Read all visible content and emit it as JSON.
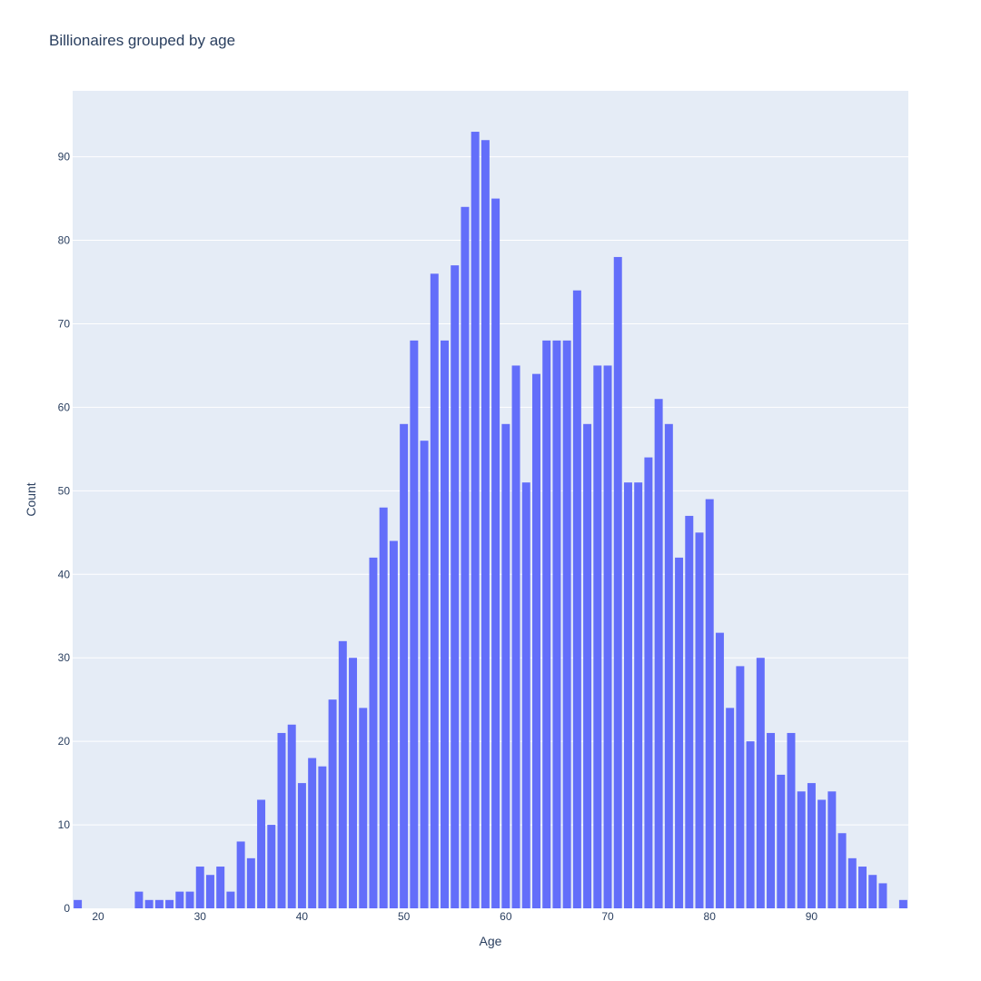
{
  "chart_data": {
    "type": "bar",
    "title": "Billionaires grouped by age",
    "xlabel": "Age",
    "ylabel": "Count",
    "xlim": [
      17.5,
      99.5
    ],
    "ylim": [
      0,
      97.9
    ],
    "x_ticks": [
      20,
      30,
      40,
      50,
      60,
      70,
      80,
      90
    ],
    "y_ticks": [
      0,
      10,
      20,
      30,
      40,
      50,
      60,
      70,
      80,
      90
    ],
    "grid": true,
    "bar_color": "#636efa",
    "plot_bgcolor": "#e5ecf6",
    "series": [
      {
        "x": [
          18,
          24,
          25,
          26,
          27,
          28,
          29,
          30,
          31,
          32,
          33,
          34,
          35,
          36,
          37,
          38,
          39,
          40,
          41,
          42,
          43,
          44,
          45,
          46,
          47,
          48,
          49,
          50,
          51,
          52,
          53,
          54,
          55,
          56,
          57,
          58,
          59,
          60,
          61,
          62,
          63,
          64,
          65,
          66,
          67,
          68,
          69,
          70,
          71,
          72,
          73,
          74,
          75,
          76,
          77,
          78,
          79,
          80,
          81,
          82,
          83,
          84,
          85,
          86,
          87,
          88,
          89,
          90,
          91,
          92,
          93,
          94,
          95,
          96,
          97,
          99
        ],
        "values": [
          1,
          2,
          1,
          1,
          1,
          2,
          2,
          5,
          4,
          5,
          2,
          8,
          6,
          13,
          10,
          21,
          22,
          15,
          18,
          17,
          25,
          32,
          30,
          24,
          42,
          48,
          44,
          58,
          68,
          56,
          76,
          68,
          77,
          84,
          93,
          92,
          85,
          58,
          65,
          51,
          64,
          68,
          68,
          68,
          74,
          58,
          65,
          65,
          78,
          51,
          51,
          54,
          61,
          58,
          42,
          47,
          45,
          49,
          33,
          24,
          29,
          20,
          30,
          21,
          16,
          21,
          14,
          15,
          13,
          14,
          9,
          6,
          5,
          4,
          3,
          1
        ]
      }
    ]
  }
}
